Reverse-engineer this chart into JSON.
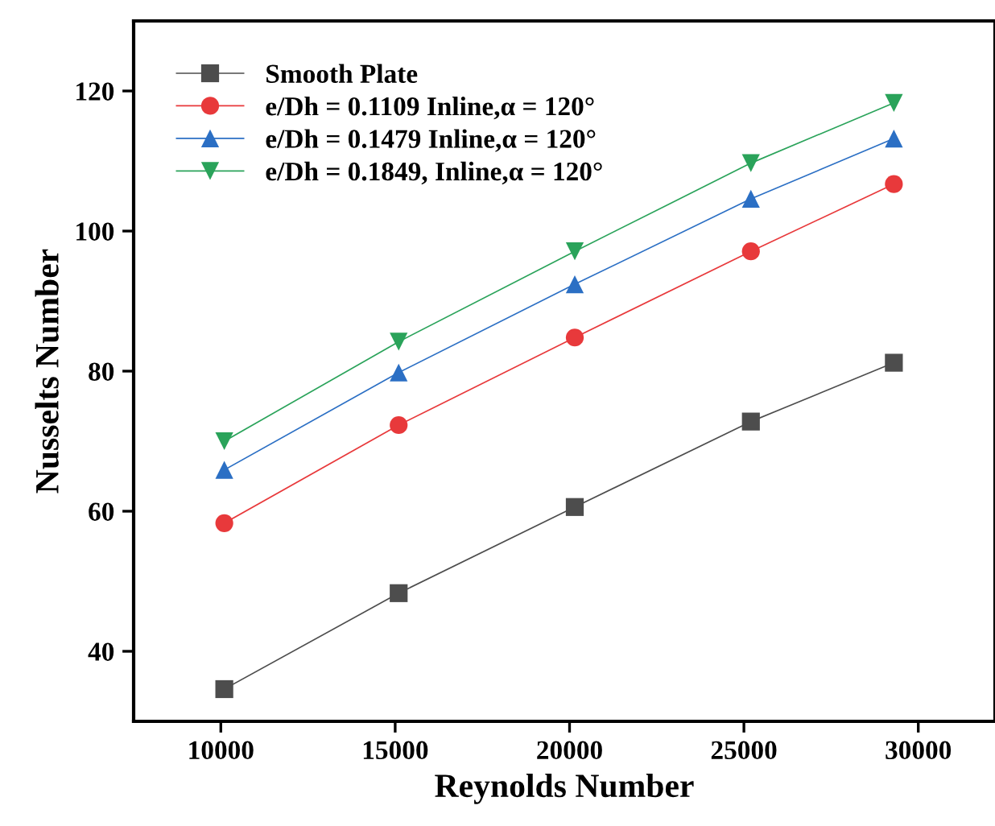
{
  "chart_data": {
    "type": "line",
    "xlabel": "Reynolds Number",
    "ylabel": "Nusselts Number",
    "x": [
      10100,
      15100,
      20150,
      25200,
      29300
    ],
    "xlim": [
      7500,
      32200
    ],
    "xticks": [
      10000,
      15000,
      20000,
      25000,
      30000
    ],
    "ylim": [
      30,
      130
    ],
    "yticks": [
      40,
      60,
      80,
      100,
      120
    ],
    "grid": false,
    "legend": "top left",
    "series": [
      {
        "name": "Smooth Plate",
        "color": "#4d4d4d",
        "marker": "square",
        "values": [
          34.6,
          48.3,
          60.6,
          72.8,
          81.2
        ]
      },
      {
        "name": "e/Dh = 0.1109 Inline,α = 120°",
        "color": "#e8393b",
        "marker": "circle",
        "values": [
          58.3,
          72.3,
          84.8,
          97.1,
          106.7
        ]
      },
      {
        "name": "e/Dh = 0.1479 Inline,α = 120°",
        "color": "#2b6fc4",
        "marker": "triangle",
        "values": [
          65.9,
          79.8,
          92.4,
          104.6,
          113.2
        ]
      },
      {
        "name": "e/Dh = 0.1849, Inline,α = 120°",
        "color": "#2aa35a",
        "marker": "triangle_down",
        "values": [
          70.0,
          84.2,
          97.1,
          109.7,
          118.3
        ]
      }
    ]
  }
}
